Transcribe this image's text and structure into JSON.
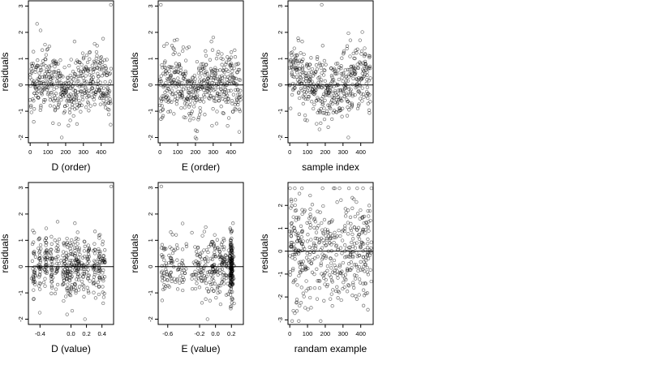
{
  "figure": {
    "background": "#ffffff",
    "point_color": "#000000"
  },
  "chart_data": [
    {
      "type": "scatter",
      "xlabel": "D (order)",
      "ylabel": "residuals",
      "xlim": [
        -10,
        470
      ],
      "ylim": [
        -2.2,
        3.2
      ],
      "xticks": [
        0,
        100,
        200,
        300,
        400
      ],
      "yticks": [
        -2,
        -1,
        0,
        1,
        2,
        3
      ],
      "hline": 0,
      "n_points": 460,
      "pattern": "order",
      "seed": 11,
      "notable_points": [
        {
          "x": 455,
          "y": 3.05
        },
        {
          "x": 250,
          "y": 1.65
        },
        {
          "x": 178,
          "y": -2.0
        }
      ],
      "grid": false,
      "legend": "none"
    },
    {
      "type": "scatter",
      "xlabel": "E (order)",
      "ylabel": "residuals",
      "xlim": [
        -10,
        470
      ],
      "ylim": [
        -2.2,
        3.2
      ],
      "xticks": [
        0,
        100,
        200,
        300,
        400
      ],
      "yticks": [
        -2,
        -1,
        0,
        1,
        2,
        3
      ],
      "hline": 0,
      "n_points": 460,
      "pattern": "order",
      "seed": 23,
      "notable_points": [
        {
          "x": 5,
          "y": 3.05
        },
        {
          "x": 290,
          "y": 1.65
        },
        {
          "x": 200,
          "y": -2.0
        }
      ],
      "grid": false,
      "legend": "none"
    },
    {
      "type": "scatter",
      "xlabel": "sample index",
      "ylabel": "residuals",
      "xlim": [
        -10,
        470
      ],
      "ylim": [
        -2.2,
        3.2
      ],
      "xticks": [
        0,
        100,
        200,
        300,
        400
      ],
      "yticks": [
        -2,
        -1,
        0,
        1,
        2,
        3
      ],
      "hline": 0,
      "n_points": 460,
      "pattern": "index",
      "seed": 37,
      "notable_points": [
        {
          "x": 180,
          "y": 3.05
        },
        {
          "x": 70,
          "y": 1.65
        },
        {
          "x": 330,
          "y": -2.0
        }
      ],
      "grid": false,
      "legend": "none"
    },
    {
      "type": "scatter",
      "xlabel": "D (value)",
      "ylabel": "residuals",
      "xlim": [
        -0.55,
        0.55
      ],
      "ylim": [
        -2.2,
        3.2
      ],
      "xticks": [
        -0.4,
        0.0,
        0.2,
        0.4
      ],
      "xtick_labels": [
        "-0.4",
        "0.0",
        "0.2",
        "0.4"
      ],
      "yticks": [
        -2,
        -1,
        0,
        1,
        2,
        3
      ],
      "hline": 0,
      "n_points": 460,
      "pattern": "dvalue",
      "seed": 41,
      "columns": [
        -0.48,
        -0.4,
        -0.32,
        -0.25,
        -0.18,
        -0.1,
        -0.05,
        0.0,
        0.06,
        0.1,
        0.16,
        0.22,
        0.3,
        0.36,
        0.42
      ],
      "notable_points": [
        {
          "x": 0.52,
          "y": 3.05
        },
        {
          "x": 0.05,
          "y": 1.65
        },
        {
          "x": 0.18,
          "y": -2.0
        }
      ],
      "grid": false,
      "legend": "none"
    },
    {
      "type": "scatter",
      "xlabel": "E (value)",
      "ylabel": "residuals",
      "xlim": [
        -0.72,
        0.35
      ],
      "ylim": [
        -2.2,
        3.2
      ],
      "xticks": [
        -0.6,
        -0.2,
        0.0,
        0.2
      ],
      "xtick_labels": [
        "-0.6",
        "-0.2",
        "0.0",
        "0.2"
      ],
      "yticks": [
        -2,
        -1,
        0,
        1,
        2,
        3
      ],
      "hline": 0,
      "n_points": 460,
      "pattern": "evalue",
      "seed": 53,
      "notable_points": [
        {
          "x": -0.68,
          "y": 3.05
        },
        {
          "x": 0.22,
          "y": 1.65
        },
        {
          "x": -0.1,
          "y": -2.0
        }
      ],
      "grid": false,
      "legend": "none"
    },
    {
      "type": "scatter",
      "xlabel": "randam example",
      "ylabel": "residuals",
      "xlim": [
        -10,
        470
      ],
      "ylim": [
        -3.2,
        3.0
      ],
      "xticks": [
        0,
        100,
        200,
        300,
        400
      ],
      "yticks": [
        -3,
        -2,
        -1,
        0,
        1,
        2
      ],
      "hline": 0,
      "n_points": 460,
      "pattern": "random",
      "seed": 67,
      "notable_points": [
        {
          "x": 460,
          "y": 2.75
        },
        {
          "x": 20,
          "y": -2.6
        }
      ],
      "grid": false,
      "legend": "none"
    }
  ]
}
